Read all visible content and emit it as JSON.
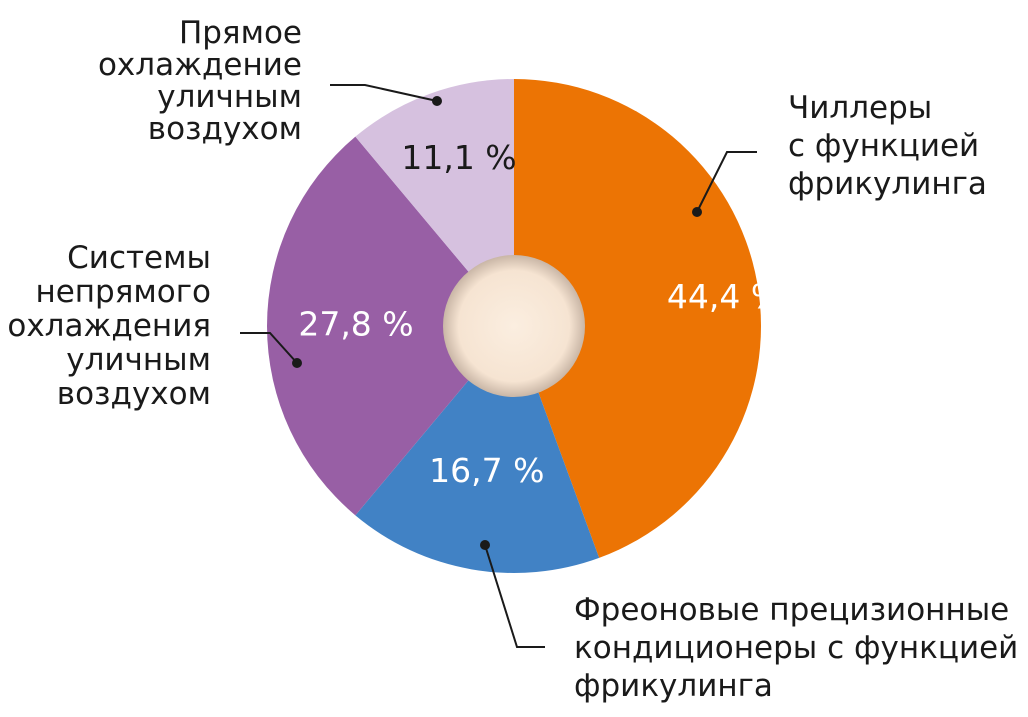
{
  "chart_data": {
    "type": "pie",
    "donut": true,
    "slices": [
      {
        "label": "Чиллеры с функцией фрикулинга",
        "label_lines": [
          "Чиллеры",
          "с функцией",
          "фрикулинга"
        ],
        "value": 44.4,
        "value_label": "44,4 %",
        "color": "#ec7404",
        "value_label_color": "#ffffff"
      },
      {
        "label": "Фреоновые прецизионные кондиционеры с функцией фрикулинга",
        "label_lines": [
          "Фреоновые прецизионные",
          "кондиционеры с функцией",
          "фрикулинга"
        ],
        "value": 16.7,
        "value_label": "16,7 %",
        "color": "#4182c5",
        "value_label_color": "#ffffff"
      },
      {
        "label": "Системы непрямого охлаждения уличным воздухом",
        "label_lines": [
          "Системы",
          "непрямого",
          "охлаждения",
          "уличным",
          "воздухом"
        ],
        "value": 27.8,
        "value_label": "27,8 %",
        "color": "#985fa5",
        "value_label_color": "#ffffff"
      },
      {
        "label": "Прямое охлаждение уличным воздухом",
        "label_lines": [
          "Прямое",
          "охлаждение",
          "уличным",
          "воздухом"
        ],
        "value": 11.1,
        "value_label": "11,1 %",
        "color": "#d6c1df",
        "value_label_color": "#1a1a1a"
      }
    ],
    "start_angle": "12 o'clock",
    "direction": "clockwise",
    "center_hole_color": "#f3dfcb",
    "legend": "none (callout labels)"
  }
}
